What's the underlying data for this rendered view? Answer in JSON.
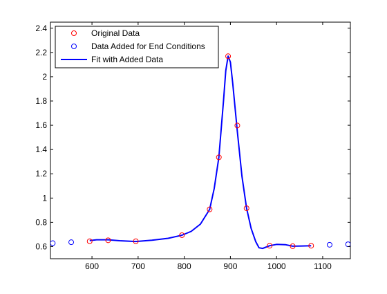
{
  "chart_data": {
    "type": "scatter",
    "xlim": [
      510,
      1160
    ],
    "ylim": [
      0.5,
      2.45
    ],
    "x_ticks": [
      600,
      700,
      800,
      900,
      1000,
      1100
    ],
    "y_ticks": [
      0.6,
      0.8,
      1,
      1.2,
      1.4,
      1.6,
      1.8,
      2,
      2.2,
      2.4
    ],
    "x_tick_labels": [
      "600",
      "700",
      "800",
      "900",
      "1000",
      "1100"
    ],
    "y_tick_labels": [
      "0.6",
      "0.8",
      "1",
      "1.2",
      "1.4",
      "1.6",
      "1.8",
      "2",
      "2.2",
      "2.4"
    ],
    "grid": false,
    "legend_position": "top-left",
    "series": [
      {
        "name": "Original Data",
        "kind": "markers",
        "color": "#ff0000",
        "x": [
          595,
          635,
          695,
          795,
          855,
          875,
          895,
          915,
          935,
          985,
          1035,
          1075
        ],
        "y": [
          0.644,
          0.652,
          0.644,
          0.694,
          0.907,
          1.336,
          2.169,
          1.598,
          0.916,
          0.607,
          0.603,
          0.607
        ]
      },
      {
        "name": "Data Added for End Conditions",
        "kind": "markers",
        "color": "#0000ff",
        "x": [
          515,
          555,
          1115,
          1155
        ],
        "y": [
          0.628,
          0.636,
          0.615,
          0.619
        ]
      },
      {
        "name": "Fit with Added Data",
        "kind": "line",
        "color": "#0000ff",
        "x": [
          595,
          610,
          635,
          660,
          695,
          730,
          765,
          795,
          815,
          835,
          855,
          865,
          875,
          885,
          890,
          895,
          900,
          905,
          915,
          925,
          935,
          945,
          955,
          962,
          970,
          985,
          1000,
          1020,
          1035,
          1055,
          1075
        ],
        "y": [
          0.65,
          0.656,
          0.656,
          0.648,
          0.642,
          0.652,
          0.668,
          0.694,
          0.725,
          0.785,
          0.907,
          1.08,
          1.336,
          1.8,
          2.05,
          2.17,
          2.12,
          1.95,
          1.55,
          1.18,
          0.916,
          0.75,
          0.64,
          0.59,
          0.585,
          0.607,
          0.618,
          0.615,
          0.603,
          0.605,
          0.607
        ]
      }
    ]
  }
}
